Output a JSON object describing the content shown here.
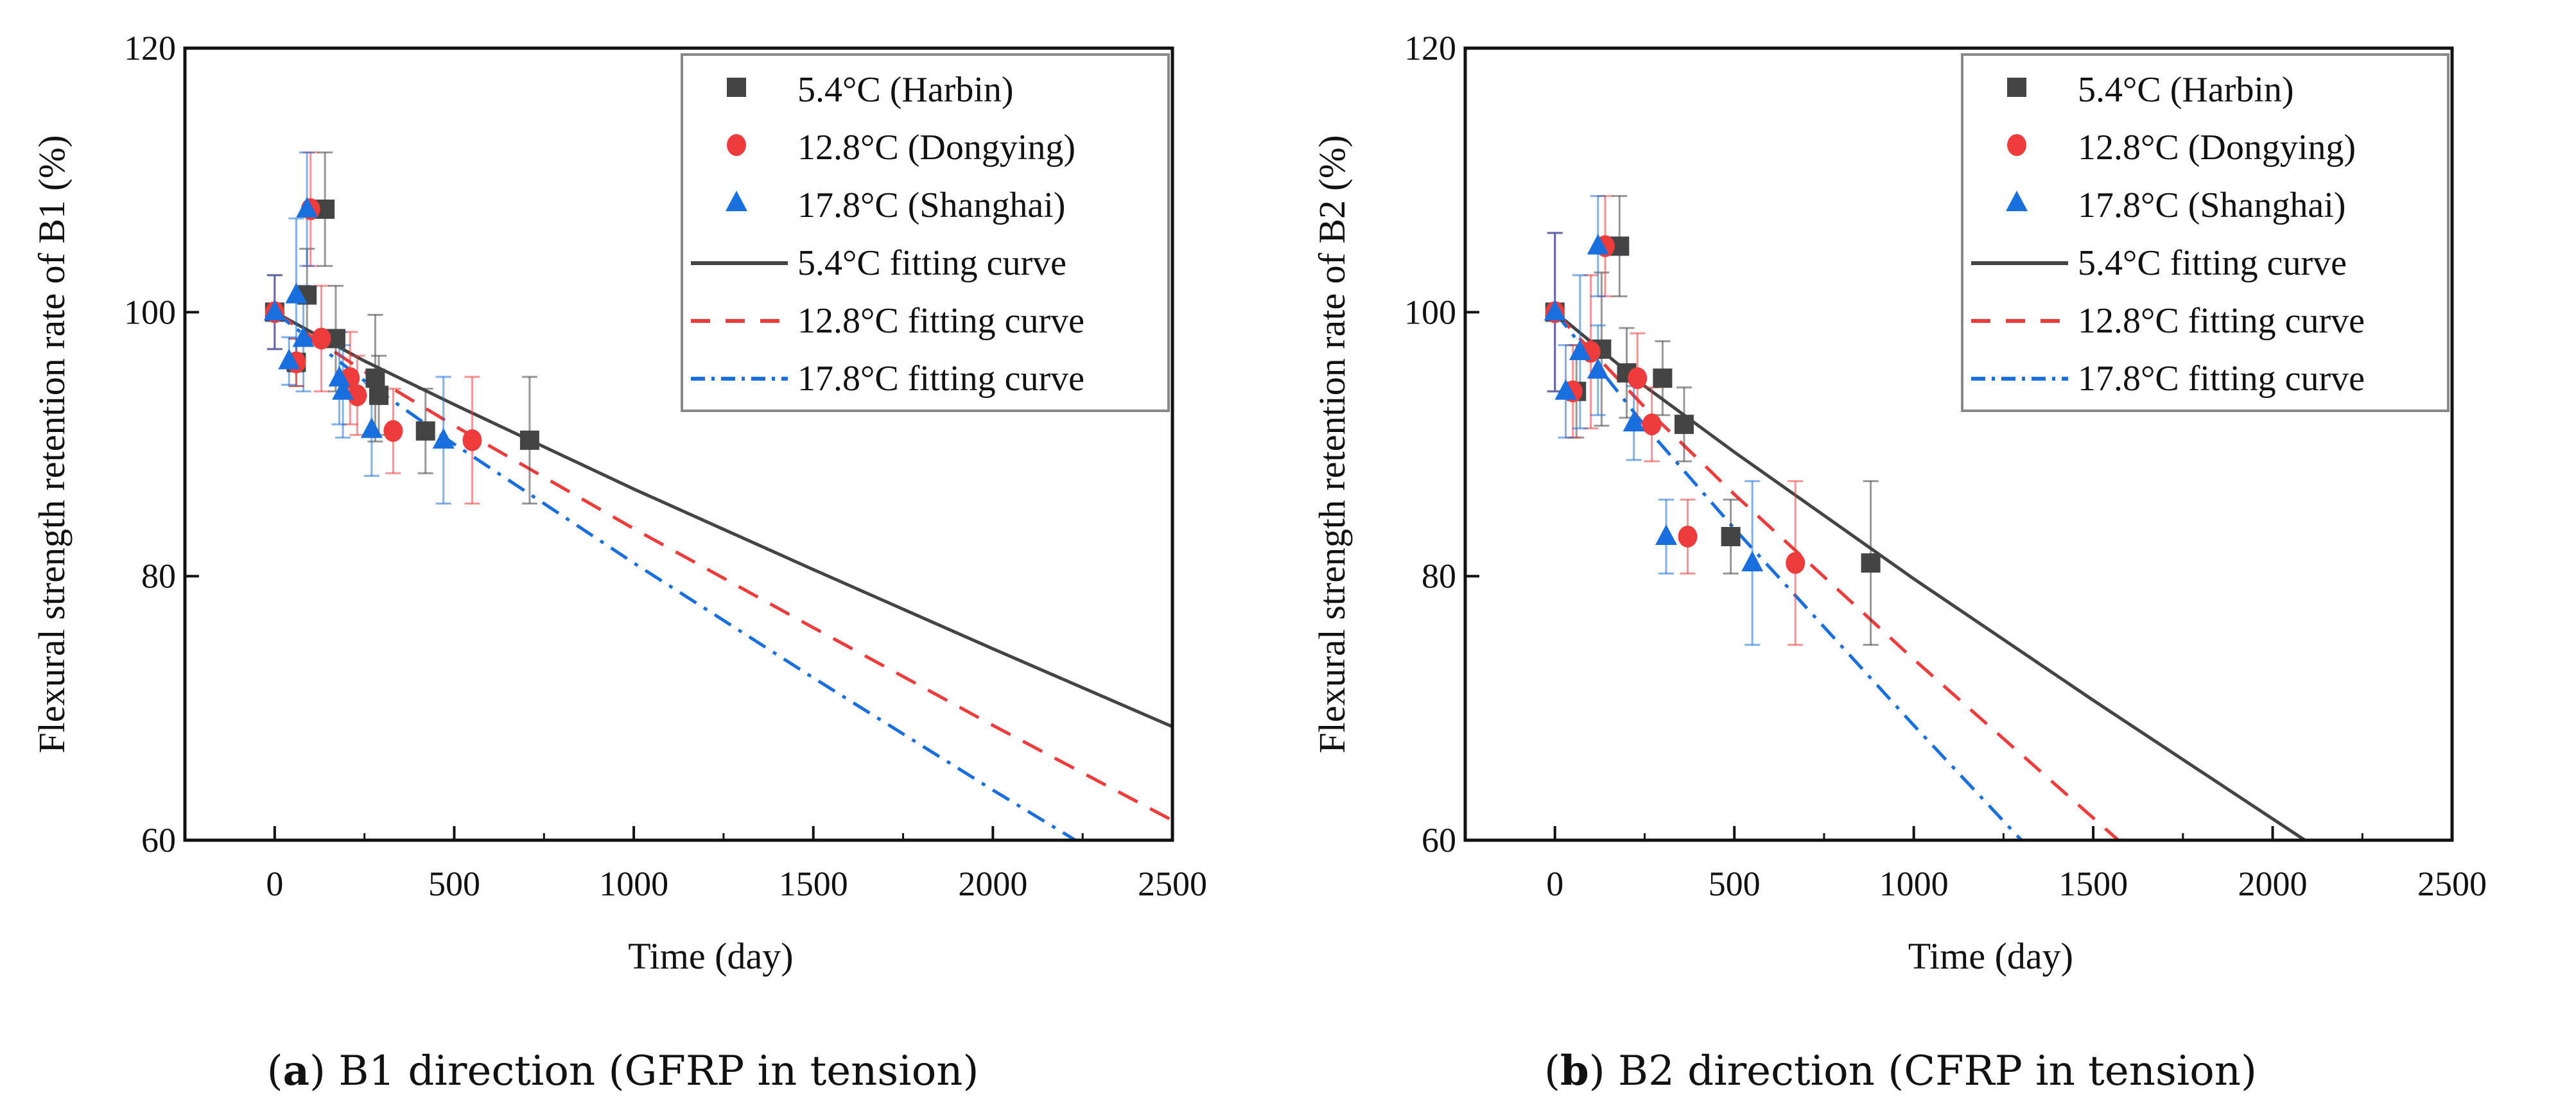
{
  "colors": {
    "harbin": "#444444",
    "dongying": "#ee3b3b",
    "shanghai": "#1a6fdf"
  },
  "chart_data": [
    {
      "type": "scatter",
      "id": "a",
      "caption_label": "a",
      "caption_text": "B1 direction (GFRP in tension)",
      "xlabel": "Time (day)",
      "ylabel": "Flexural strength retention rate of B1 (%)",
      "xlim": [
        -250,
        2500
      ],
      "ylim": [
        60,
        120
      ],
      "xticks": [
        0,
        500,
        1000,
        1500,
        2000,
        2500
      ],
      "yticks": [
        60,
        80,
        100,
        120
      ],
      "legend_position": "top-right",
      "series": [
        {
          "name": "5.4°C (Harbin)",
          "key": "harbin",
          "marker": "square",
          "x": [
            0,
            60,
            90,
            140,
            170,
            280,
            290,
            420,
            710
          ],
          "y": [
            100,
            96.2,
            101.3,
            107.8,
            98,
            95,
            93.7,
            91,
            90.3
          ],
          "err": [
            2.8,
            1.8,
            3.5,
            4.3,
            4,
            4.8,
            3,
            3.2,
            4.8
          ]
        },
        {
          "name": "12.8°C (Dongying)",
          "key": "dongying",
          "marker": "circle",
          "x": [
            0,
            60,
            100,
            130,
            210,
            230,
            330,
            550
          ],
          "y": [
            100,
            96.2,
            107.8,
            98,
            95,
            93.7,
            91,
            90.3
          ],
          "err": [
            2.8,
            1.8,
            4.3,
            4,
            3.5,
            3,
            3.2,
            4.8
          ]
        },
        {
          "name": "17.8°C (Shanghai)",
          "key": "shanghai",
          "marker": "triangle",
          "x": [
            0,
            40,
            60,
            90,
            80,
            180,
            190,
            270,
            470
          ],
          "y": [
            100,
            96.3,
            101.3,
            107.8,
            98,
            95,
            94,
            91.1,
            90.3
          ],
          "err": [
            2.8,
            1.8,
            5.8,
            4.3,
            4,
            3.5,
            3.5,
            3.5,
            4.8
          ]
        }
      ],
      "fits": [
        {
          "name": "5.4°C fitting curve",
          "key": "harbin",
          "style": "solid",
          "x": [
            0,
            250,
            500,
            1000,
            1500,
            2000,
            2500
          ],
          "y": [
            100,
            96.3,
            93.0,
            86.6,
            80.5,
            74.5,
            68.6
          ]
        },
        {
          "name": "12.8°C fitting curve",
          "key": "dongying",
          "style": "dash",
          "x": [
            0,
            250,
            500,
            1000,
            1500,
            2000,
            2500
          ],
          "y": [
            100,
            95.5,
            91.4,
            83.6,
            76.1,
            68.7,
            61.5
          ]
        },
        {
          "name": "17.8°C fitting curve",
          "key": "shanghai",
          "style": "dashdot",
          "x": [
            0,
            250,
            500,
            1000,
            1500,
            2000,
            2230
          ],
          "y": [
            100,
            94.8,
            90.0,
            81.0,
            72.3,
            63.8,
            60
          ]
        }
      ]
    },
    {
      "type": "scatter",
      "id": "b",
      "caption_label": "b",
      "caption_text": "B2 direction (CFRP in tension)",
      "xlabel": "Time (day)",
      "ylabel": "Flexural strength retention rate of B2 (%)",
      "xlim": [
        -250,
        2500
      ],
      "ylim": [
        60,
        120
      ],
      "xticks": [
        0,
        500,
        1000,
        1500,
        2000,
        2500
      ],
      "yticks": [
        60,
        80,
        100,
        120
      ],
      "legend_position": "top-right",
      "series": [
        {
          "name": "5.4°C (Harbin)",
          "key": "harbin",
          "marker": "square",
          "x": [
            0,
            60,
            130,
            180,
            200,
            300,
            360,
            490,
            880
          ],
          "y": [
            100,
            94,
            97.2,
            105,
            95.4,
            95,
            91.5,
            83,
            81
          ],
          "err": [
            6,
            3.5,
            5.8,
            3.8,
            3.4,
            2.8,
            2.8,
            2.8,
            6.2
          ]
        },
        {
          "name": "12.8°C (Dongying)",
          "key": "dongying",
          "marker": "circle",
          "x": [
            0,
            50,
            100,
            140,
            230,
            270,
            370,
            670
          ],
          "y": [
            100,
            94,
            97,
            105,
            95,
            91.5,
            83,
            81
          ],
          "err": [
            6,
            3.5,
            5.8,
            3.8,
            3.4,
            2.8,
            2.8,
            6.2
          ]
        },
        {
          "name": "17.8°C (Shanghai)",
          "key": "shanghai",
          "marker": "triangle",
          "x": [
            0,
            30,
            70,
            120,
            120,
            220,
            310,
            550
          ],
          "y": [
            100,
            94,
            97,
            105,
            95.6,
            91.6,
            83,
            81
          ],
          "err": [
            6,
            3.5,
            5.8,
            3.8,
            3.4,
            2.8,
            2.8,
            6.2
          ]
        }
      ],
      "fits": [
        {
          "name": "5.4°C fitting curve",
          "key": "harbin",
          "style": "solid",
          "x": [
            0,
            250,
            500,
            1000,
            1500,
            2090
          ],
          "y": [
            100,
            94.4,
            89.4,
            79.8,
            70.6,
            60
          ]
        },
        {
          "name": "12.8°C fitting curve",
          "key": "dongying",
          "style": "dash",
          "x": [
            0,
            250,
            500,
            1000,
            1570
          ],
          "y": [
            100,
            92.8,
            86.2,
            73.7,
            60
          ]
        },
        {
          "name": "17.8°C fitting curve",
          "key": "shanghai",
          "style": "dashdot",
          "x": [
            0,
            250,
            500,
            1000,
            1300
          ],
          "y": [
            100,
            91.4,
            83.6,
            68.7,
            60
          ]
        }
      ]
    }
  ]
}
